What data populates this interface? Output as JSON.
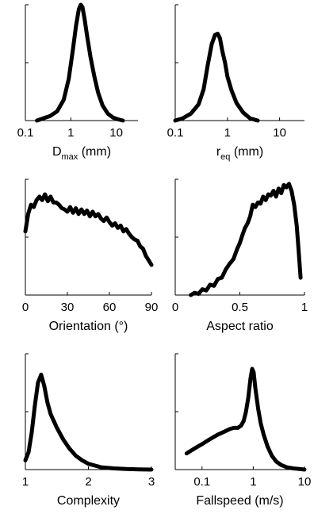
{
  "chart_data": [
    {
      "type": "line",
      "xscale": "log",
      "xlim": [
        0.1,
        30
      ],
      "xticks": [
        0.1,
        1,
        10
      ],
      "tick_labels": [
        "0.1",
        "1",
        "10"
      ],
      "xlabel": {
        "main": "D",
        "sub": "max",
        "unit": " (mm)"
      },
      "ylim": [
        0,
        1
      ],
      "series": [
        {
          "x": [
            0.18,
            0.25,
            0.35,
            0.5,
            0.7,
            0.9,
            1.1,
            1.3,
            1.5,
            1.65,
            1.8,
            2.0,
            2.3,
            2.7,
            3.3,
            4.0,
            5.0,
            6.5,
            8.5,
            11,
            14
          ],
          "y": [
            0.0,
            0.02,
            0.04,
            0.08,
            0.18,
            0.36,
            0.6,
            0.82,
            0.96,
            1.0,
            0.98,
            0.88,
            0.72,
            0.55,
            0.38,
            0.24,
            0.13,
            0.06,
            0.025,
            0.01,
            0.0
          ]
        }
      ]
    },
    {
      "type": "line",
      "xscale": "log",
      "xlim": [
        0.1,
        30
      ],
      "xticks": [
        0.1,
        1,
        10
      ],
      "tick_labels": [
        "0.1",
        "1",
        "10"
      ],
      "xlabel": {
        "main": "r",
        "sub": "eq",
        "unit": " (mm)"
      },
      "ylim": [
        0,
        1
      ],
      "series": [
        {
          "x": [
            0.1,
            0.14,
            0.2,
            0.28,
            0.35,
            0.42,
            0.5,
            0.58,
            0.65,
            0.72,
            0.8,
            0.9,
            1.0,
            1.2,
            1.5,
            2.0,
            2.7,
            3.8
          ],
          "y": [
            0.0,
            0.02,
            0.06,
            0.14,
            0.27,
            0.48,
            0.66,
            0.74,
            0.75,
            0.71,
            0.6,
            0.5,
            0.38,
            0.26,
            0.15,
            0.07,
            0.02,
            0.0
          ]
        }
      ]
    },
    {
      "type": "line",
      "xscale": "linear",
      "xlim": [
        0,
        90
      ],
      "xticks": [
        0,
        30,
        60,
        90
      ],
      "tick_labels": [
        "0",
        "30",
        "60",
        "90"
      ],
      "xlabel": {
        "main": "Orientation (°)",
        "sub": "",
        "unit": ""
      },
      "ylim": [
        0,
        1
      ],
      "series": [
        {
          "x": [
            0,
            2,
            4,
            6,
            8,
            10,
            12,
            14,
            16,
            18,
            20,
            22,
            24,
            26,
            28,
            30,
            32,
            34,
            36,
            38,
            40,
            42,
            44,
            46,
            48,
            50,
            52,
            54,
            56,
            58,
            60,
            62,
            64,
            66,
            68,
            70,
            72,
            74,
            76,
            78,
            80,
            82,
            84,
            86,
            88,
            90
          ],
          "y": [
            0.55,
            0.7,
            0.78,
            0.76,
            0.82,
            0.85,
            0.82,
            0.87,
            0.81,
            0.85,
            0.8,
            0.8,
            0.78,
            0.75,
            0.74,
            0.72,
            0.76,
            0.71,
            0.75,
            0.7,
            0.74,
            0.7,
            0.73,
            0.68,
            0.72,
            0.68,
            0.7,
            0.66,
            0.64,
            0.67,
            0.63,
            0.6,
            0.62,
            0.58,
            0.6,
            0.55,
            0.57,
            0.53,
            0.5,
            0.48,
            0.47,
            0.42,
            0.4,
            0.34,
            0.3,
            0.26
          ]
        }
      ]
    },
    {
      "type": "line",
      "xscale": "linear",
      "xlim": [
        0,
        1
      ],
      "xticks": [
        0,
        0.5,
        1
      ],
      "tick_labels": [
        "0",
        "0.5",
        "1"
      ],
      "xlabel": {
        "main": "Aspect ratio",
        "sub": "",
        "unit": ""
      },
      "ylim": [
        0,
        1
      ],
      "series": [
        {
          "x": [
            0.12,
            0.15,
            0.18,
            0.21,
            0.24,
            0.27,
            0.3,
            0.33,
            0.36,
            0.39,
            0.42,
            0.45,
            0.48,
            0.5,
            0.52,
            0.54,
            0.56,
            0.58,
            0.6,
            0.62,
            0.64,
            0.66,
            0.68,
            0.7,
            0.72,
            0.74,
            0.76,
            0.78,
            0.8,
            0.82,
            0.84,
            0.86,
            0.88,
            0.9,
            0.92,
            0.94,
            0.95,
            0.96,
            0.97
          ],
          "y": [
            0.0,
            0.02,
            0.01,
            0.05,
            0.04,
            0.09,
            0.08,
            0.14,
            0.15,
            0.22,
            0.27,
            0.31,
            0.4,
            0.45,
            0.52,
            0.58,
            0.62,
            0.68,
            0.78,
            0.76,
            0.8,
            0.79,
            0.85,
            0.82,
            0.87,
            0.86,
            0.9,
            0.85,
            0.92,
            0.88,
            0.95,
            0.93,
            0.96,
            0.9,
            0.78,
            0.6,
            0.45,
            0.3,
            0.15
          ]
        }
      ]
    },
    {
      "type": "line",
      "xscale": "linear",
      "xlim": [
        1,
        3
      ],
      "xticks": [
        1,
        2,
        3
      ],
      "tick_labels": [
        "1",
        "2",
        "3"
      ],
      "xlabel": {
        "main": "Complexity",
        "sub": "",
        "unit": ""
      },
      "ylim": [
        0,
        1
      ],
      "series": [
        {
          "x": [
            1.0,
            1.05,
            1.1,
            1.15,
            1.2,
            1.25,
            1.3,
            1.35,
            1.4,
            1.5,
            1.6,
            1.7,
            1.8,
            1.9,
            2.0,
            2.1,
            2.2,
            2.4,
            2.6,
            2.8,
            3.0
          ],
          "y": [
            0.08,
            0.15,
            0.32,
            0.55,
            0.75,
            0.82,
            0.72,
            0.58,
            0.48,
            0.36,
            0.26,
            0.18,
            0.12,
            0.08,
            0.05,
            0.035,
            0.02,
            0.01,
            0.005,
            0.002,
            0.0
          ]
        }
      ]
    },
    {
      "type": "line",
      "xscale": "log",
      "xlim": [
        0.03,
        10
      ],
      "xticks": [
        0.1,
        1,
        10
      ],
      "tick_labels": [
        "0.1",
        "1",
        "10"
      ],
      "xlabel": {
        "main": "Fallspeed (m/s)",
        "sub": "",
        "unit": ""
      },
      "ylim": [
        0,
        1
      ],
      "series": [
        {
          "x": [
            0.05,
            0.07,
            0.1,
            0.14,
            0.2,
            0.28,
            0.35,
            0.42,
            0.5,
            0.58,
            0.65,
            0.72,
            0.8,
            0.88,
            0.95,
            1.02,
            1.1,
            1.25,
            1.4,
            1.6,
            1.9,
            2.3,
            2.8,
            3.5,
            4.5,
            6,
            8,
            10
          ],
          "y": [
            0.14,
            0.18,
            0.22,
            0.26,
            0.3,
            0.33,
            0.35,
            0.36,
            0.36,
            0.38,
            0.42,
            0.5,
            0.62,
            0.78,
            0.87,
            0.84,
            0.7,
            0.52,
            0.4,
            0.3,
            0.2,
            0.12,
            0.07,
            0.04,
            0.02,
            0.01,
            0.005,
            0.0
          ]
        }
      ]
    }
  ]
}
